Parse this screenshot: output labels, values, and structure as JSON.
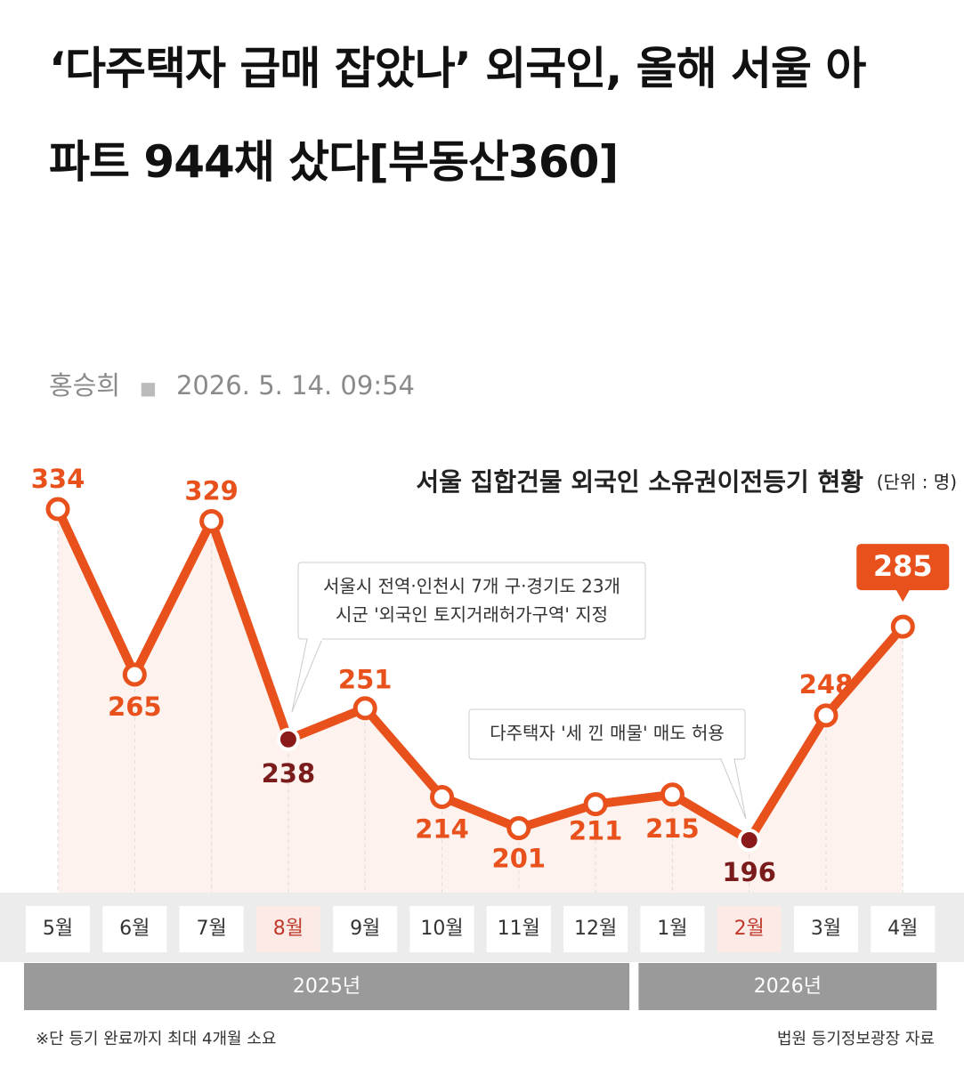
{
  "article": {
    "title": "‘다주택자 급매 잡았나’ 외국인, 올해 서울 아파트 944채 샀다[부동산360]",
    "author": "홍승희",
    "date": "2026. 5. 14. 09:54"
  },
  "chart_data": {
    "type": "line",
    "title": "서울 집합건물 외국인 소유권이전등기 현황",
    "unit": "(단위 : 명)",
    "categories": [
      "5월",
      "6월",
      "7월",
      "8월",
      "9월",
      "10월",
      "11월",
      "12월",
      "1월",
      "2월",
      "3월",
      "4월"
    ],
    "series": [
      {
        "color": "#e8501c",
        "values": [
          334,
          265,
          329,
          238,
          251,
          214,
          201,
          211,
          215,
          196,
          248,
          285
        ]
      }
    ],
    "year_groups": [
      "2025년",
      "2026년"
    ],
    "annotations": [
      {
        "lines": [
          "서울시 전역·인천시 7개 구·경기도 23개",
          "시군 '외국인 토지거래허가구역' 지정"
        ]
      },
      {
        "lines": [
          "다주택자 '세 낀 매물' 매도 허용"
        ]
      }
    ],
    "footnote": "※단 등기 완료까지 최대 4개월 소요",
    "source": "법원 등기정보광장 자료"
  }
}
